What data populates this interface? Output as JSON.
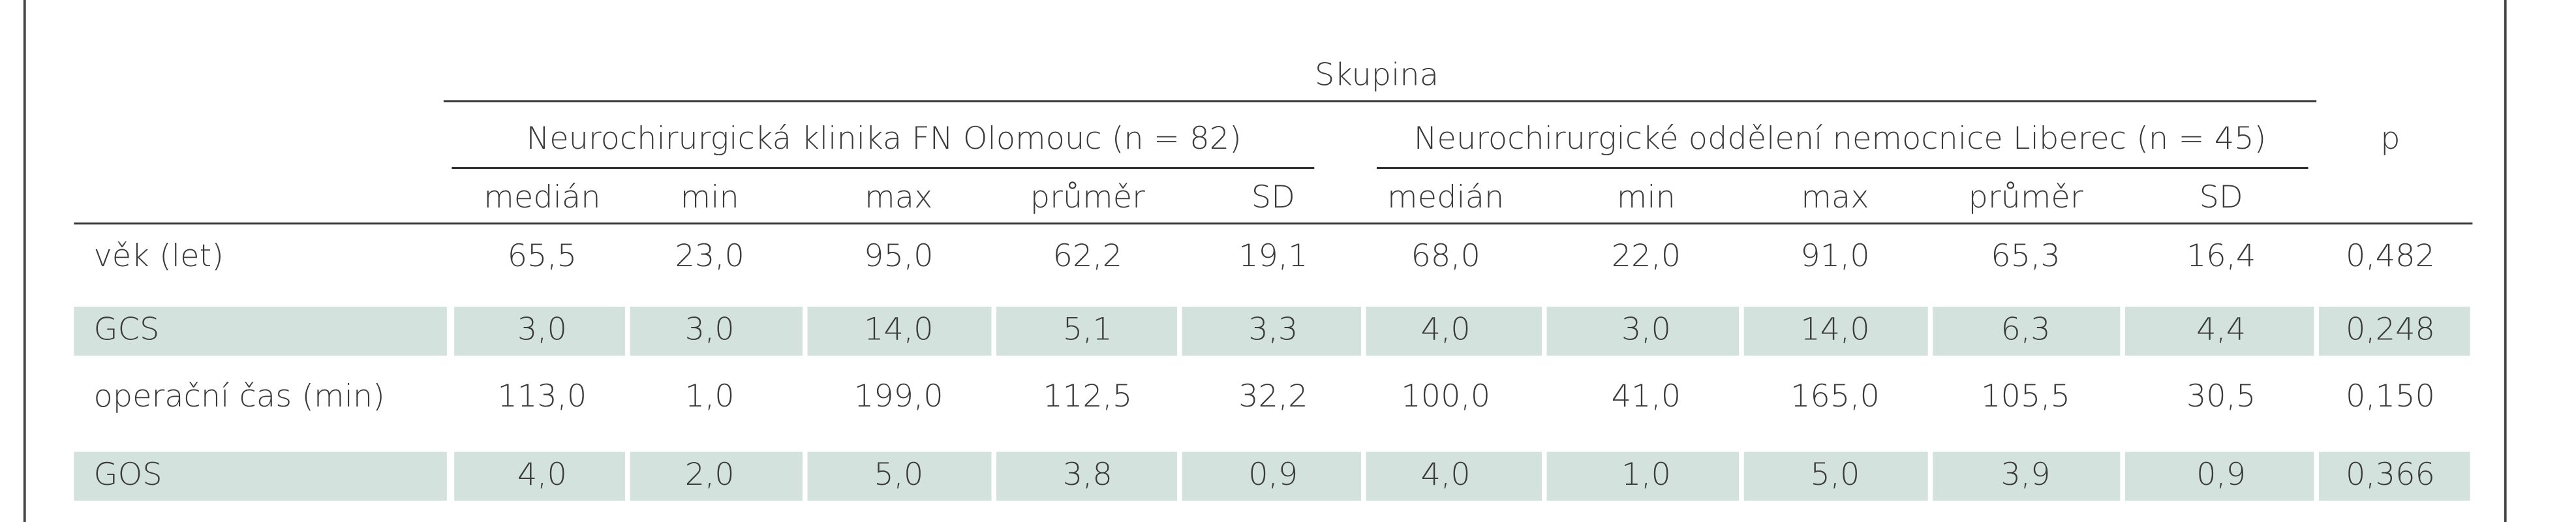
{
  "table": {
    "group_title": "Skupina",
    "groups": [
      {
        "name": "Neurochirurgická klinika FN Olomouc (n = 82)",
        "columns": [
          "medián",
          "min",
          "max",
          "průměr",
          "SD"
        ]
      },
      {
        "name": "Neurochirurgické oddělení nemocnice Liberec (n = 45)",
        "columns": [
          "medián",
          "min",
          "max",
          "průměr",
          "SD"
        ]
      }
    ],
    "p_label": "p",
    "rows": [
      {
        "label": "věk (let)",
        "cells": [
          "65,5",
          "23,0",
          "95,0",
          "62,2",
          "19,1",
          "68,0",
          "22,0",
          "91,0",
          "65,3",
          "16,4",
          "0,482"
        ]
      },
      {
        "label": "GCS",
        "cells": [
          "3,0",
          "3,0",
          "14,0",
          "5,1",
          "3,3",
          "4,0",
          "3,0",
          "14,0",
          "6,3",
          "4,4",
          "0,248"
        ]
      },
      {
        "label": "operační čas (min)",
        "cells": [
          "113,0",
          "1,0",
          "199,0",
          "112,5",
          "32,2",
          "100,0",
          "41,0",
          "165,0",
          "105,5",
          "30,5",
          "0,150"
        ]
      },
      {
        "label": "GOS",
        "cells": [
          "4,0",
          "2,0",
          "5,0",
          "3,8",
          "0,9",
          "4,0",
          "1,0",
          "5,0",
          "3,9",
          "0,9",
          "0,366"
        ]
      }
    ]
  }
}
